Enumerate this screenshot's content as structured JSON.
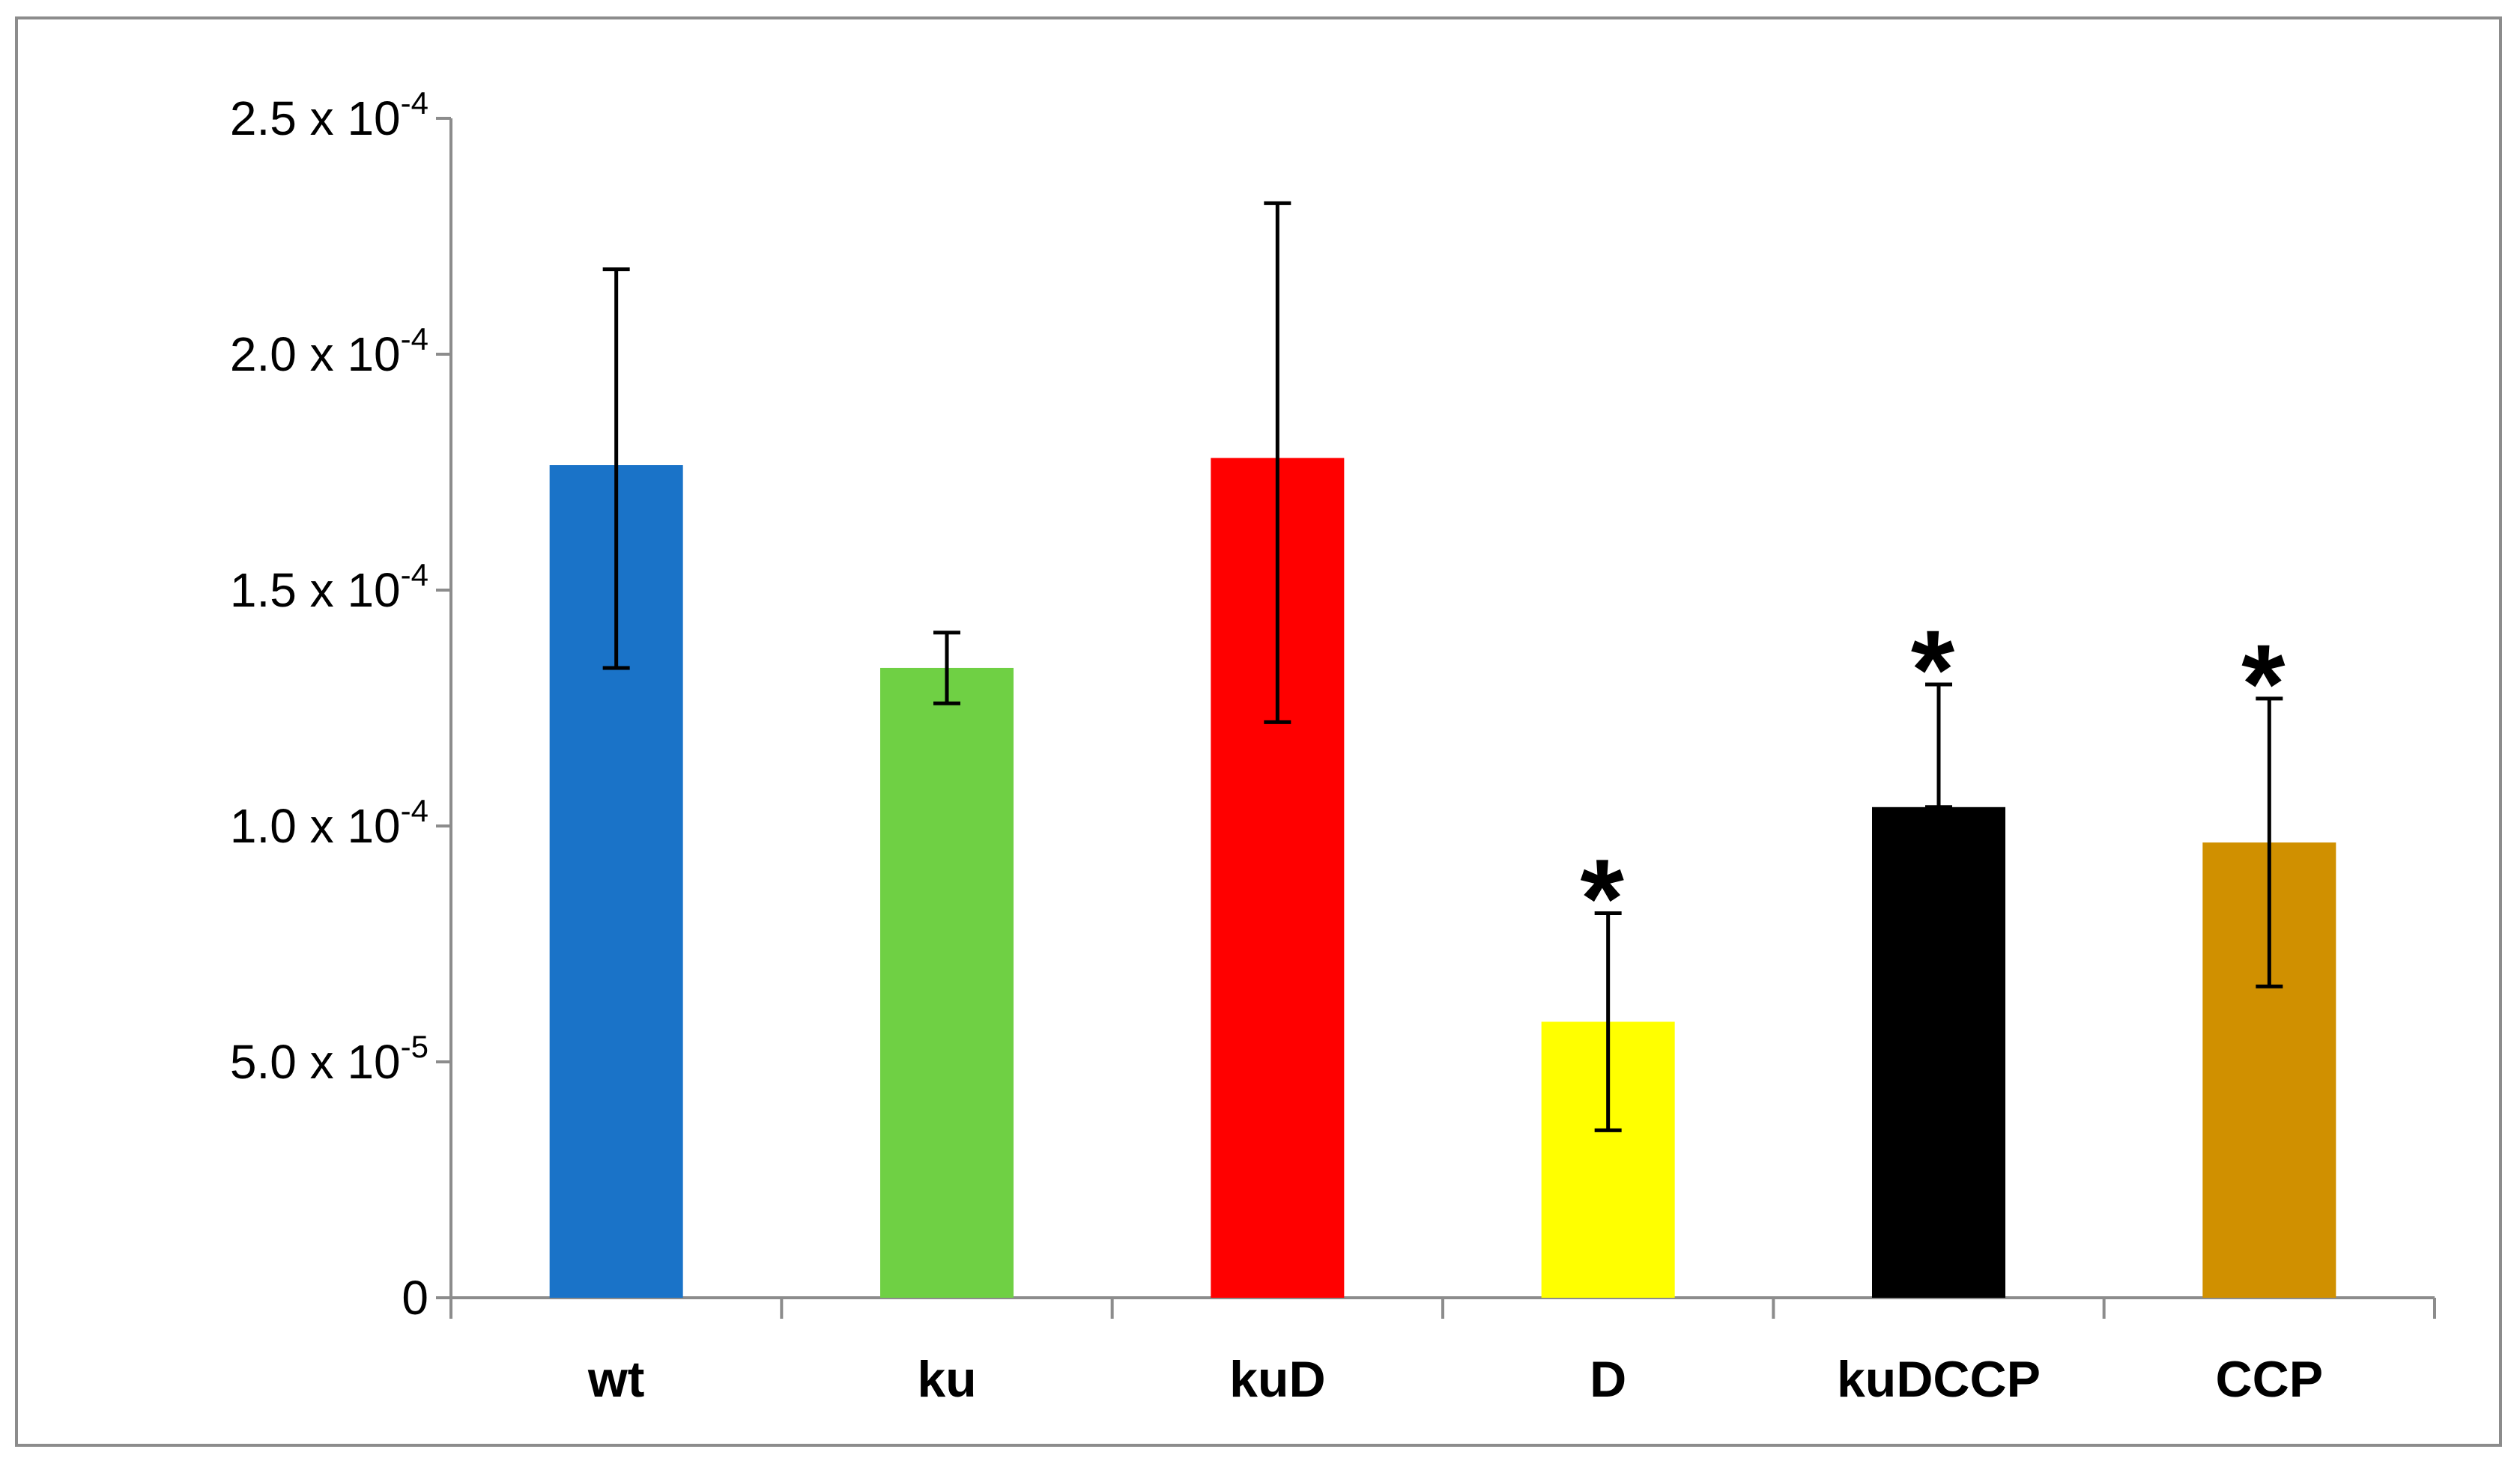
{
  "chart_data": {
    "type": "bar",
    "title": "",
    "xlabel": "",
    "ylabel": "",
    "categories": [
      "wt",
      "ku",
      "kuD",
      "D",
      "kuDCCP",
      "CCP"
    ],
    "values": [
      0.0001765,
      0.0001335,
      0.000178,
      5.85e-05,
      0.000104,
      9.65e-05
    ],
    "error_upper": [
      0.000218,
      0.000141,
      0.000232,
      8.15e-05,
      0.00013,
      0.000127
    ],
    "error_lower": [
      0.0001335,
      0.000126,
      0.000122,
      3.55e-05,
      0.000104,
      6.6e-05
    ],
    "significance": [
      "",
      "",
      "",
      "*",
      "*",
      "*"
    ],
    "colors": [
      "#1a73c8",
      "#6fd044",
      "#ff0000",
      "#ffff00",
      "#000000",
      "#d09000"
    ],
    "ylim": [
      0,
      0.00025
    ],
    "yticks": [
      {
        "value": 0,
        "mantissa": "0",
        "exponent": ""
      },
      {
        "value": 5e-05,
        "mantissa": "5.0 x 10",
        "exponent": "-5"
      },
      {
        "value": 0.0001,
        "mantissa": "1.0 x 10",
        "exponent": "-4"
      },
      {
        "value": 0.00015,
        "mantissa": "1.5 x 10",
        "exponent": "-4"
      },
      {
        "value": 0.0002,
        "mantissa": "2.0 x 10",
        "exponent": "-4"
      },
      {
        "value": 0.00025,
        "mantissa": "2.5 x 10",
        "exponent": "-4"
      }
    ],
    "grid": false,
    "legend": "none"
  }
}
